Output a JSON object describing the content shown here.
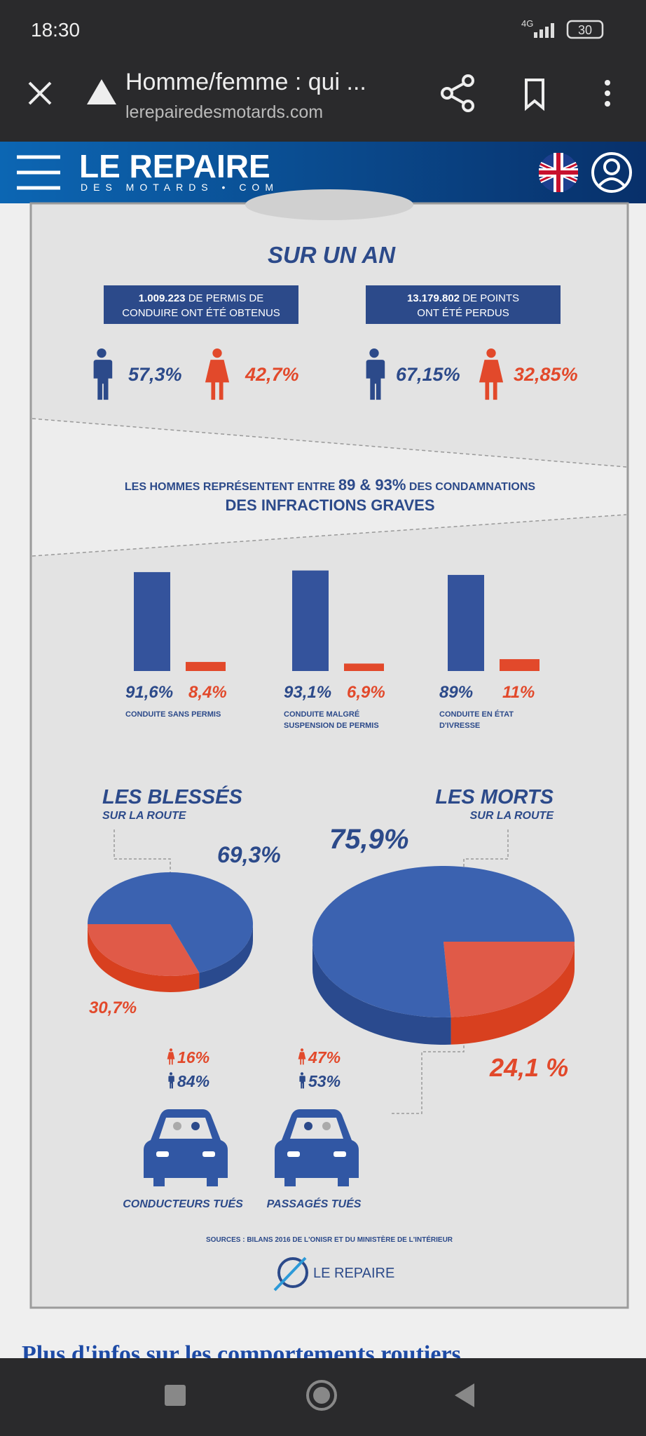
{
  "status_bar": {
    "time": "18:30",
    "network": "4G",
    "battery": "30"
  },
  "browser": {
    "title": "Homme/femme : qui ...",
    "url": "lerepairedesmotards.com"
  },
  "site_header": {
    "logo": "LE REPAIRE",
    "logo_sub": "DES MOTARDS • COM"
  },
  "infographic": {
    "year_title": "SUR UN AN",
    "boxes": [
      {
        "number": "1.009.223",
        "text_1": "DE PERMIS DE",
        "text_2": "CONDUIRE ONT ÉTÉ OBTENUS",
        "men": "57,3%",
        "women": "42,7%"
      },
      {
        "number": "13.179.802",
        "text_1": "DE POINTS",
        "text_2": "ONT ÉTÉ PERDUS",
        "men": "67,15%",
        "women": "32,85%"
      }
    ],
    "band": {
      "start": "LES HOMMES REPRÉSENTENT ENTRE",
      "highlight": "89 & 93%",
      "end": "DES CONDAMNATIONS",
      "line2": "DES INFRACTIONS GRAVES"
    },
    "bars": [
      {
        "men": {
          "value": 91.6,
          "label": "91,6%"
        },
        "women": {
          "value": 8.4,
          "label": "8,4%"
        },
        "caption": [
          "CONDUITE SANS PERMIS"
        ]
      },
      {
        "men": {
          "value": 93.1,
          "label": "93,1%"
        },
        "women": {
          "value": 6.9,
          "label": "6,9%"
        },
        "caption": [
          "CONDUITE MALGRÉ",
          "SUSPENSION DE PERMIS"
        ]
      },
      {
        "men": {
          "value": 89,
          "label": "89%"
        },
        "women": {
          "value": 11,
          "label": "11%"
        },
        "caption": [
          "CONDUITE EN ÉTAT",
          "D'IVRESSE"
        ]
      }
    ],
    "pies": [
      {
        "title": "LES BLESSÉS",
        "subtitle": "SUR LA ROUTE",
        "men": {
          "value": 69.3,
          "label": "69,3%"
        },
        "women": {
          "value": 30.7,
          "label": "30,7%"
        }
      },
      {
        "title": "LES MORTS",
        "subtitle": "SUR LA ROUTE",
        "men": {
          "value": 75.9,
          "label": "75,9%"
        },
        "women": {
          "value": 24.1,
          "label": "24,1 %"
        }
      }
    ],
    "cars": [
      {
        "women": "16%",
        "men": "84%",
        "caption": "CONDUCTEURS TUÉS"
      },
      {
        "women": "47%",
        "men": "53%",
        "caption": "PASSAGÉS TUÉS"
      }
    ],
    "sources": "SOURCES : BILANS 2016 DE L'ONISR ET DU MINISTÈRE DE L'INTÉRIEUR",
    "footer_logo": "LE REPAIRE"
  },
  "article": {
    "heading": "Plus d'infos sur les comportements routiers"
  }
}
